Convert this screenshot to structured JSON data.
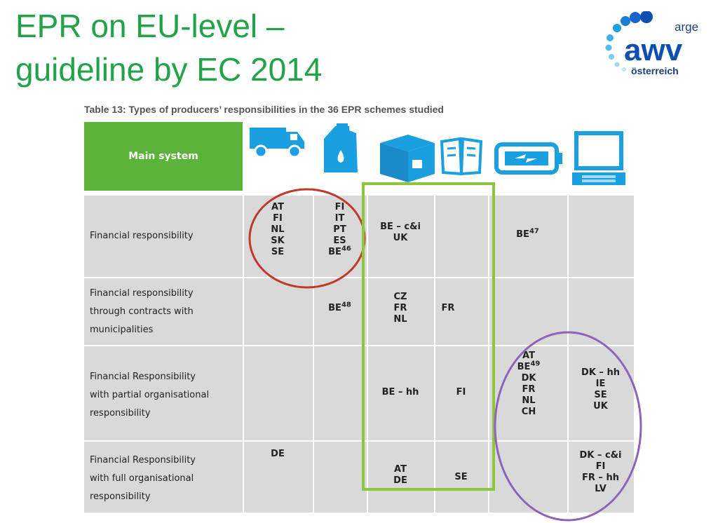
{
  "title": {
    "line1": "EPR on EU-level –",
    "line2": "guideline by EC 2014"
  },
  "logo": {
    "top_text": "arge",
    "main_text": "awv",
    "bottom_text": "österreich"
  },
  "caption": "Table 13: Types of producers’ responsibilities in the 36 EPR schemes studied",
  "header": {
    "main_system": "Main system"
  },
  "columns": [
    "vehicle-icon",
    "oil-canister-icon",
    "packaging-box-icon",
    "paper-icon",
    "battery-icon",
    "laptop-icon"
  ],
  "rows": [
    {
      "label": [
        "Financial responsibility"
      ],
      "cells": [
        [
          "AT",
          "FI",
          "NL",
          "SK",
          "SE"
        ],
        [
          "FI",
          "IT",
          "PT",
          "ES",
          "BE"
        ],
        [
          "BE – c&i",
          "UK"
        ],
        [],
        [
          "BE"
        ],
        []
      ],
      "sups": {
        "col1_last": "46",
        "col4": "47"
      }
    },
    {
      "label": [
        "Financial responsibility",
        "through contracts with",
        "municipalities"
      ],
      "cells": [
        [],
        [
          "BE"
        ],
        [
          "CZ",
          "FR",
          "NL"
        ],
        [
          "FR"
        ],
        [],
        []
      ],
      "sups": {
        "col1": "48"
      }
    },
    {
      "label": [
        "Financial Responsibility",
        "with partial organisational",
        "responsibility"
      ],
      "cells": [
        [],
        [],
        [
          "BE – hh"
        ],
        [
          "FI"
        ],
        [
          "AT",
          "BE",
          "DK",
          "FR",
          "NL",
          "CH"
        ],
        [
          "DK – hh",
          "IE",
          "SE",
          "UK"
        ]
      ],
      "sups": {
        "col4_second": "49"
      }
    },
    {
      "label": [
        "Financial Responsibility",
        "with full organisational",
        "responsibility"
      ],
      "cells": [
        [
          "DE"
        ],
        [],
        [
          "AT",
          "DE"
        ],
        [
          "SE"
        ],
        [],
        [
          "DK – c&i",
          "FI",
          "FR – hh",
          "LV"
        ]
      ]
    }
  ],
  "colors": {
    "green": "#5cb33a",
    "icon_blue": "#1aa0e0",
    "circle_red": "#c0392b",
    "rect_green": "#8ec63f",
    "circle_purple": "#8e63b8",
    "title_green": "#22a34a"
  }
}
